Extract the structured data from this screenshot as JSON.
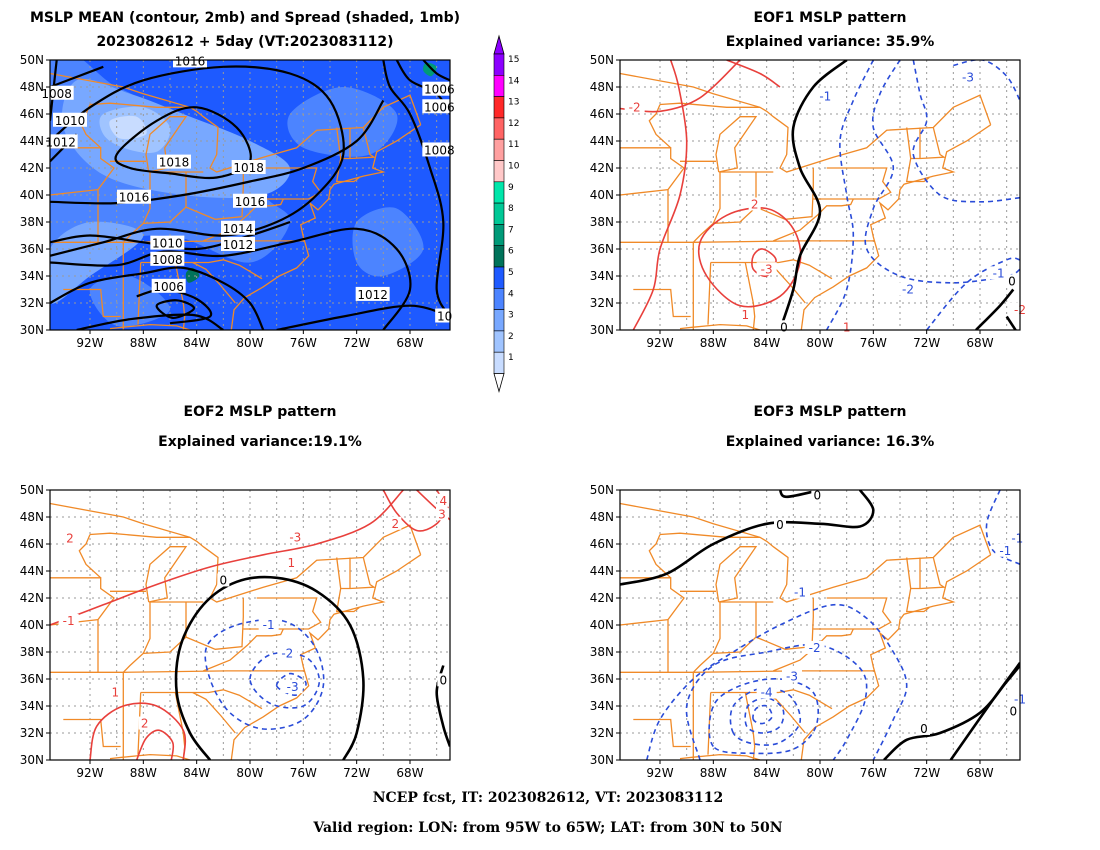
{
  "panels": {
    "mean": {
      "title1": "MSLP MEAN (contour, 2mb) and Spread (shaded, 1mb)",
      "title2": "2023082612 + 5day (VT:2023083112)"
    },
    "eof1": {
      "title1": "EOF1 MSLP pattern",
      "title2": "Explained variance: 35.9%"
    },
    "eof2": {
      "title1": "EOF2 MSLP pattern",
      "title2": "Explained variance:19.1%"
    },
    "eof3": {
      "title1": "EOF3 MSLP pattern",
      "title2": "Explained variance: 16.3%"
    }
  },
  "axes": {
    "lon_ticks": [
      "92W",
      "88W",
      "84W",
      "80W",
      "76W",
      "72W",
      "68W"
    ],
    "lat_ticks": [
      "50N",
      "48N",
      "46N",
      "44N",
      "42N",
      "40N",
      "38N",
      "36N",
      "34N",
      "32N",
      "30N"
    ],
    "lon_range": [
      -95,
      -65
    ],
    "lat_range": [
      30,
      50
    ]
  },
  "colorbar": {
    "labels": [
      "1",
      "2",
      "3",
      "4",
      "5",
      "6",
      "7",
      "8",
      "9",
      "10",
      "11",
      "12",
      "13",
      "14",
      "15"
    ],
    "colors": [
      "#c8dcff",
      "#a0c4ff",
      "#78a8ff",
      "#4c84ff",
      "#1e5aff",
      "#00735a",
      "#009a78",
      "#00c896",
      "#00e6aa",
      "#ffc8c8",
      "#ffa0a0",
      "#ff6464",
      "#ff2828",
      "#ff00ff",
      "#8c00ff"
    ]
  },
  "contour_labels": {
    "mean": [
      "1016",
      "1018",
      "1018",
      "1016",
      "1016",
      "1014",
      "1010",
      "1012",
      "1008",
      "1006",
      "1012",
      "1008",
      "1010",
      "1008",
      "1006",
      "1012",
      "1006",
      "10"
    ],
    "eof1": [
      "-2",
      "2",
      "-3",
      "1",
      "0",
      "1",
      "-1",
      "-3",
      "-2",
      "-1",
      "0",
      "-2"
    ],
    "eof2": [
      "2",
      "1",
      "-1",
      "0",
      "-1",
      "-2",
      "-3",
      "1",
      "2",
      "4",
      "-3",
      "2",
      "0",
      "3"
    ],
    "eof3": [
      "0",
      "0",
      "-1",
      "-1",
      "-2",
      "-3",
      "-4",
      "0",
      "-1",
      "0",
      "-1"
    ]
  },
  "colors": {
    "positive": "#e8403c",
    "negative": "#2a4cd8",
    "zero": "#000000",
    "coast": "#f08a28"
  },
  "footer": {
    "line1": "NCEP fcst, IT: 2023082612, VT: 2023083112",
    "line2": "Valid region: LON: from 95W to 65W; LAT: from 30N to 50N"
  }
}
